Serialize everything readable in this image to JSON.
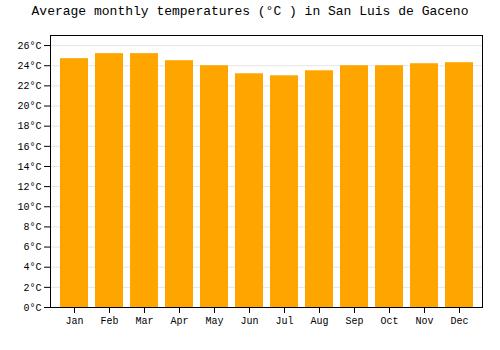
{
  "chart_data": {
    "type": "bar",
    "title": "Average monthly temperatures (°C ) in San Luis de Gaceno",
    "categories": [
      "Jan",
      "Feb",
      "Mar",
      "Apr",
      "May",
      "Jun",
      "Jul",
      "Aug",
      "Sep",
      "Oct",
      "Nov",
      "Dec"
    ],
    "values": [
      24.7,
      25.2,
      25.2,
      24.5,
      24.0,
      23.2,
      23.0,
      23.5,
      24.0,
      24.0,
      24.2,
      24.3
    ],
    "color": "#FFA500",
    "ylim": [
      0,
      27
    ],
    "yticks": [
      {
        "value": 0,
        "label": "0°C"
      },
      {
        "value": 2,
        "label": "2°C"
      },
      {
        "value": 4,
        "label": "4°C"
      },
      {
        "value": 6,
        "label": "6°C"
      },
      {
        "value": 8,
        "label": "8°C"
      },
      {
        "value": 10,
        "label": "10°C"
      },
      {
        "value": 12,
        "label": "12°C"
      },
      {
        "value": 14,
        "label": "14°C"
      },
      {
        "value": 16,
        "label": "16°C"
      },
      {
        "value": 18,
        "label": "18°C"
      },
      {
        "value": 20,
        "label": "20°C"
      },
      {
        "value": 22,
        "label": "22°C"
      },
      {
        "value": 24,
        "label": "24°C"
      },
      {
        "value": 26,
        "label": "26°C"
      }
    ],
    "grid": true
  }
}
